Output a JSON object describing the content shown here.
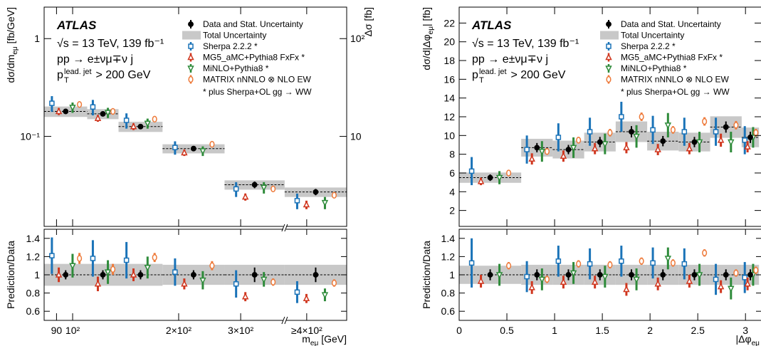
{
  "chart_data": [
    {
      "type": "ratio_histogram",
      "log_x": true,
      "log_y": true,
      "x_break": true,
      "xlabel": [
        "m",
        "eμ",
        " [GeV]"
      ],
      "ylabel": [
        "dσ/dm",
        "eμ",
        " [fb/GeV]"
      ],
      "y2label": "Δσ [fb]",
      "ratio_ylabel": "Prediction/Data",
      "annotations": {
        "experiment": "ATLAS",
        "lines": [
          "√s = 13 TeV, 139 fb⁻¹",
          "pp → e±νμ∓ν j"
        ],
        "cut": [
          "p",
          "lead. jet",
          "T",
          " > 200 GeV"
        ]
      },
      "legend_note": "* plus Sherpa+OL gg → WW",
      "bins": [
        83,
        110,
        135,
        180,
        270,
        400,
        600
      ],
      "xlim": [
        83,
        600
      ],
      "xticks": [
        90,
        {
          "value": 100,
          "label": "10²"
        },
        {
          "value": 200,
          "label": "2×10²"
        },
        {
          "value": 300,
          "label": "3×10²"
        },
        {
          "value": 462,
          "label": "≥4×10²"
        }
      ],
      "ylim": [
        0.012,
        2.1
      ],
      "yticks": [
        1,
        {
          "value": 0.1,
          "label": "10⁻¹"
        }
      ],
      "y2lim": [
        1.2,
        210
      ],
      "y2ticks": [
        {
          "value": 100,
          "label": "10²"
        },
        10
      ],
      "ratio_ylim": [
        0.5,
        1.5
      ],
      "ratio_yticks": [
        0.6,
        0.8,
        1,
        1.2,
        1.4
      ],
      "total_uncertainty": {
        "name": "Total Uncertainty",
        "color": "#c8c8c8",
        "errors": [
          0.022,
          0.02,
          0.015,
          0.008,
          0.0035,
          0.003
        ],
        "ratio_errors": [
          0.12,
          0.12,
          0.12,
          0.11,
          0.11,
          0.11
        ]
      },
      "series": [
        {
          "name": "Data and Stat. Uncertainty",
          "color": "#000000",
          "marker": "point",
          "values": [
            0.18,
            0.17,
            0.126,
            0.075,
            0.032,
            0.027
          ],
          "errors": [
            0.009,
            0.009,
            0.006,
            0.004,
            0.0025,
            0.002
          ],
          "ratio_values": [
            1,
            1,
            1,
            1,
            1,
            1
          ],
          "ratio_errors": [
            0.05,
            0.05,
            0.05,
            0.05,
            0.08,
            0.08
          ]
        },
        {
          "name": "Sherpa 2.2.2 *",
          "color": "#1a73b8",
          "marker": "square",
          "values": [
            0.218,
            0.2,
            0.146,
            0.077,
            0.029,
            0.022
          ],
          "errors": [
            0.04,
            0.036,
            0.026,
            0.012,
            0.005,
            0.004
          ],
          "ratio_values": [
            1.21,
            1.18,
            1.16,
            1.03,
            0.9,
            0.81
          ],
          "ratio_errors": [
            0.2,
            0.2,
            0.2,
            0.15,
            0.15,
            0.12
          ]
        },
        {
          "name": "MG5_aMC+Pythia8 FxFx *",
          "color": "#d0361e",
          "marker": "triangle",
          "values": [
            0.18,
            0.153,
            0.126,
            0.068,
            0.024,
            0.02
          ],
          "errors": [
            0.015,
            0.012,
            0.01,
            0.005,
            0.002,
            0.002
          ],
          "ratio_values": [
            1.0,
            0.9,
            1.0,
            0.9,
            0.76,
            0.74
          ],
          "ratio_errors": [
            0.08,
            0.08,
            0.07,
            0.06,
            0.05,
            0.05
          ]
        },
        {
          "name": "MiNLO+Pythia8 *",
          "color": "#2e8b3a",
          "marker": "triangle-down",
          "values": [
            0.198,
            0.175,
            0.136,
            0.071,
            0.03,
            0.021
          ],
          "errors": [
            0.024,
            0.021,
            0.016,
            0.008,
            0.004,
            0.003
          ],
          "ratio_values": [
            1.1,
            1.03,
            1.08,
            0.94,
            0.95,
            0.78
          ],
          "ratio_errors": [
            0.13,
            0.13,
            0.12,
            0.1,
            0.08,
            0.07
          ]
        },
        {
          "name": "MATRIX nNNLO ⊗ NLO EW",
          "color": "#ee7a3a",
          "marker": "ellipse",
          "values": [
            0.212,
            0.18,
            0.15,
            0.083,
            0.029,
            0.025
          ],
          "errors": [
            0.011,
            0.009,
            0.008,
            0.004,
            0.0015,
            0.0013
          ],
          "ratio_values": [
            1.18,
            1.06,
            1.19,
            1.1,
            0.92,
            0.91
          ],
          "ratio_errors": [
            0.06,
            0.06,
            0.05,
            0.05,
            0.04,
            0.04
          ]
        }
      ]
    },
    {
      "type": "ratio_histogram",
      "log_x": false,
      "log_y": false,
      "xlabel": [
        "|Δφ",
        "eμ"
      ],
      "ylabel": [
        "dσ/d|Δφ",
        "eμ",
        "| [fb]"
      ],
      "ratio_ylabel": "Prediction/Data",
      "annotations": {
        "experiment": "ATLAS",
        "lines": [
          "√s = 13 TeV, 139 fb⁻¹",
          "pp → e±νμ∓ν j"
        ],
        "cut": [
          "p",
          "lead. jet",
          "T",
          " > 200 GeV"
        ]
      },
      "legend_note": "* plus Sherpa+OL gg → WW",
      "bins": [
        0,
        0.65,
        0.98,
        1.31,
        1.64,
        1.97,
        2.3,
        2.63,
        2.96,
        3.1416
      ],
      "xlim": [
        0,
        3.17
      ],
      "xticks": [
        0,
        0.5,
        1,
        1.5,
        2,
        2.5,
        3
      ],
      "ylim": [
        0.3,
        23.7
      ],
      "yticks": [
        2,
        4,
        6,
        8,
        10,
        12,
        14,
        16,
        18,
        20,
        22
      ],
      "ratio_ylim": [
        0.5,
        1.5
      ],
      "ratio_yticks": [
        0.6,
        0.8,
        1,
        1.2,
        1.4
      ],
      "total_uncertainty": {
        "name": "Total Uncertainty",
        "color": "#c8c8c8",
        "errors": [
          0.55,
          0.95,
          0.95,
          1.0,
          1.1,
          1.0,
          1.0,
          1.15,
          1.05
        ],
        "ratio_errors": [
          0.1,
          0.11,
          0.11,
          0.11,
          0.11,
          0.11,
          0.11,
          0.11,
          0.11
        ]
      },
      "series": [
        {
          "name": "Data and Stat. Uncertainty",
          "color": "#000000",
          "marker": "point",
          "values": [
            5.5,
            8.7,
            8.5,
            9.3,
            10.4,
            9.4,
            9.3,
            10.9,
            9.8
          ],
          "errors": [
            0.35,
            0.5,
            0.5,
            0.55,
            0.6,
            0.55,
            0.55,
            0.6,
            0.6
          ],
          "ratio_values": [
            1,
            1,
            1,
            1,
            1,
            1,
            1,
            1,
            1
          ],
          "ratio_errors": [
            0.06,
            0.06,
            0.06,
            0.06,
            0.06,
            0.06,
            0.06,
            0.06,
            0.06
          ]
        },
        {
          "name": "Sherpa 2.2.2 *",
          "color": "#1a73b8",
          "marker": "square",
          "values": [
            6.2,
            8.5,
            9.8,
            10.4,
            12.0,
            10.6,
            10.4,
            10.4,
            9.5
          ],
          "errors": [
            1.5,
            1.5,
            1.5,
            1.5,
            1.6,
            1.5,
            1.5,
            1.5,
            1.5
          ],
          "ratio_values": [
            1.13,
            0.98,
            1.15,
            1.12,
            1.15,
            1.13,
            1.12,
            0.95,
            0.97
          ],
          "ratio_errors": [
            0.27,
            0.17,
            0.17,
            0.17,
            0.17,
            0.17,
            0.17,
            0.17,
            0.17
          ]
        },
        {
          "name": "MG5_aMC+Pythia8 FxFx *",
          "color": "#d0361e",
          "marker": "triangle",
          "values": [
            5.1,
            7.5,
            7.8,
            8.6,
            8.7,
            8.5,
            8.6,
            9.5,
            8.8
          ],
          "errors": [
            0.4,
            0.6,
            0.6,
            0.6,
            0.6,
            0.6,
            0.6,
            0.7,
            0.6
          ],
          "ratio_values": [
            0.93,
            0.86,
            0.92,
            0.92,
            0.84,
            0.9,
            0.93,
            0.87,
            0.9
          ],
          "ratio_errors": [
            0.07,
            0.07,
            0.07,
            0.07,
            0.07,
            0.07,
            0.07,
            0.07,
            0.07
          ]
        },
        {
          "name": "MiNLO+Pythia8 *",
          "color": "#2e8b3a",
          "marker": "triangle-down",
          "values": [
            5.5,
            8.3,
            8.7,
            9.1,
            9.9,
            11.1,
            9.3,
            9.3,
            9.8
          ],
          "errors": [
            0.7,
            1.1,
            1.1,
            1.1,
            1.2,
            1.3,
            1.1,
            1.1,
            1.1
          ],
          "ratio_values": [
            1.0,
            0.95,
            1.02,
            0.98,
            0.95,
            1.18,
            1.0,
            0.85,
            1.0
          ],
          "ratio_errors": [
            0.12,
            0.12,
            0.12,
            0.12,
            0.12,
            0.12,
            0.12,
            0.12,
            0.12
          ]
        },
        {
          "name": "MATRIX nNNLO ⊗ NLO EW",
          "color": "#ee7a3a",
          "marker": "ellipse",
          "values": [
            6.0,
            8.3,
            9.5,
            10.3,
            12.0,
            10.6,
            11.5,
            11.1,
            10.3
          ],
          "errors": [
            0.25,
            0.35,
            0.35,
            0.4,
            0.45,
            0.4,
            0.45,
            0.45,
            0.4
          ],
          "ratio_values": [
            1.1,
            0.95,
            1.12,
            1.11,
            1.15,
            1.13,
            1.24,
            1.02,
            1.05
          ],
          "ratio_errors": [
            0.04,
            0.04,
            0.04,
            0.04,
            0.04,
            0.04,
            0.04,
            0.04,
            0.04
          ]
        }
      ]
    }
  ]
}
